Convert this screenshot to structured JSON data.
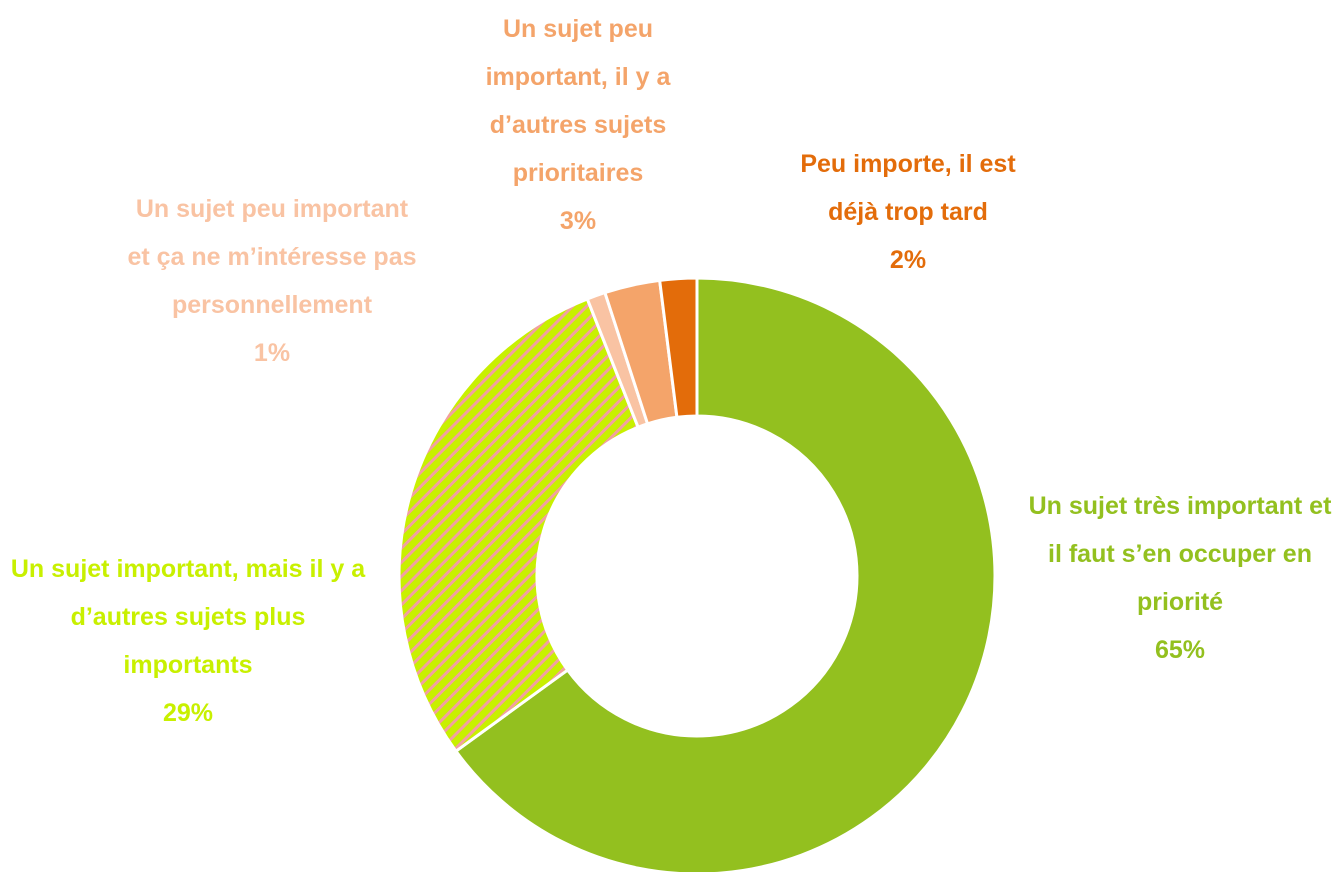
{
  "chart_data": {
    "type": "donut",
    "categories": [
      "Un sujet très important et il faut s’en occuper en priorité",
      "Un sujet important, mais il y a d’autres sujets plus importants",
      "Un sujet peu important et ça ne m’intéresse pas personnellement",
      "Un sujet peu important, il y a d’autres sujets prioritaires",
      "Peu importe, il est déjà trop tard"
    ],
    "values": [
      65,
      29,
      1,
      3,
      2
    ],
    "value_labels": [
      "65%",
      "29%",
      "1%",
      "3%",
      "2%"
    ],
    "colors": [
      "#93c01f",
      "#c8f000",
      "#f9c3a3",
      "#f4a46a",
      "#e36c0a"
    ],
    "hatch": [
      null,
      "#f2a0a0",
      null,
      null,
      null
    ]
  }
}
